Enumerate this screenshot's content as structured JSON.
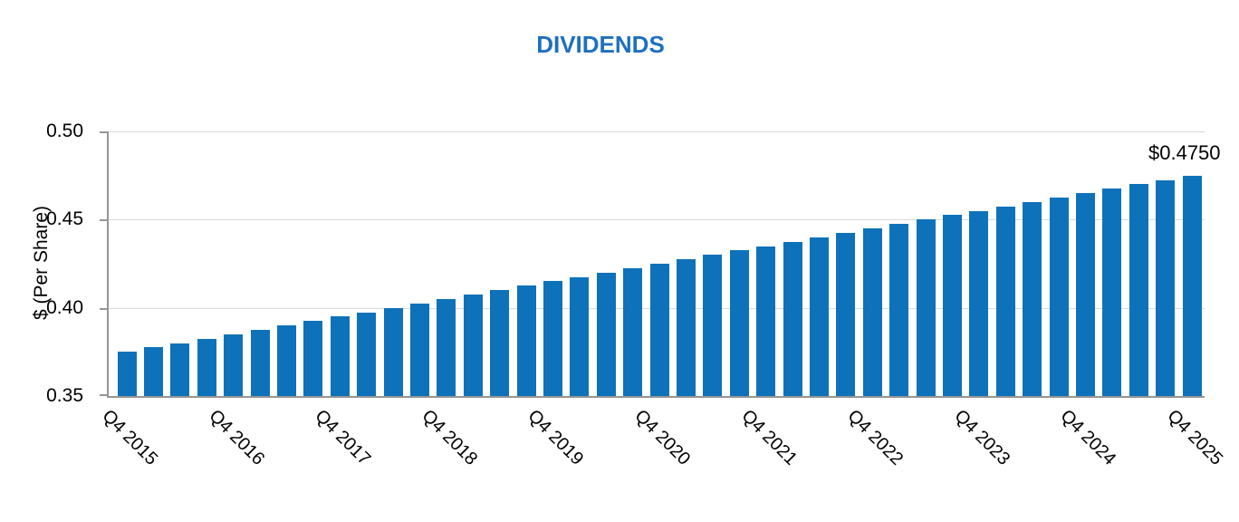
{
  "title": "DIVIDENDS",
  "annotation": "$0.4750",
  "y_axis": {
    "title": "$ (Per Share)",
    "tick_labels": [
      "0.50",
      "0.45",
      "0.40",
      "0.35"
    ]
  },
  "x_axis": {
    "tick_labels": [
      "Q4 2015",
      "Q4 2016",
      "Q4 2017",
      "Q4 2018",
      "Q4 2019",
      "Q4 2020",
      "Q4 2021",
      "Q4 2022",
      "Q4 2023",
      "Q4 2024",
      "Q4 2025"
    ],
    "label_every_n_bars": 4
  },
  "colors": {
    "bar": "#0e72ba",
    "title": "#1f6fc0",
    "grid": "#d9d9d9",
    "axis": "#969696",
    "text": "#000000"
  },
  "chart_data": {
    "type": "bar",
    "title": "DIVIDENDS",
    "xlabel": "",
    "ylabel": "$ (Per Share)",
    "ylim": [
      0.35,
      0.5
    ],
    "yticks": [
      0.35,
      0.4,
      0.45,
      0.5
    ],
    "grid": "horizontal",
    "legend": "none",
    "x_start": "Q4 2015",
    "x_end": "Q4 2025",
    "x_frequency": "quarterly",
    "x_tick_labels_shown": [
      "Q4 2015",
      "Q4 2016",
      "Q4 2017",
      "Q4 2018",
      "Q4 2019",
      "Q4 2020",
      "Q4 2021",
      "Q4 2022",
      "Q4 2023",
      "Q4 2024",
      "Q4 2025"
    ],
    "values": [
      0.375,
      0.3775,
      0.38,
      0.3825,
      0.385,
      0.3875,
      0.39,
      0.3925,
      0.395,
      0.3975,
      0.4,
      0.4025,
      0.405,
      0.4075,
      0.41,
      0.4125,
      0.415,
      0.4175,
      0.42,
      0.4225,
      0.425,
      0.4275,
      0.43,
      0.4325,
      0.435,
      0.4375,
      0.44,
      0.4425,
      0.445,
      0.4475,
      0.45,
      0.4525,
      0.455,
      0.4575,
      0.46,
      0.4625,
      0.465,
      0.4675,
      0.47,
      0.4725,
      0.475
    ],
    "annotation": {
      "text": "$0.4750",
      "anchor": "above-last-bar"
    }
  }
}
